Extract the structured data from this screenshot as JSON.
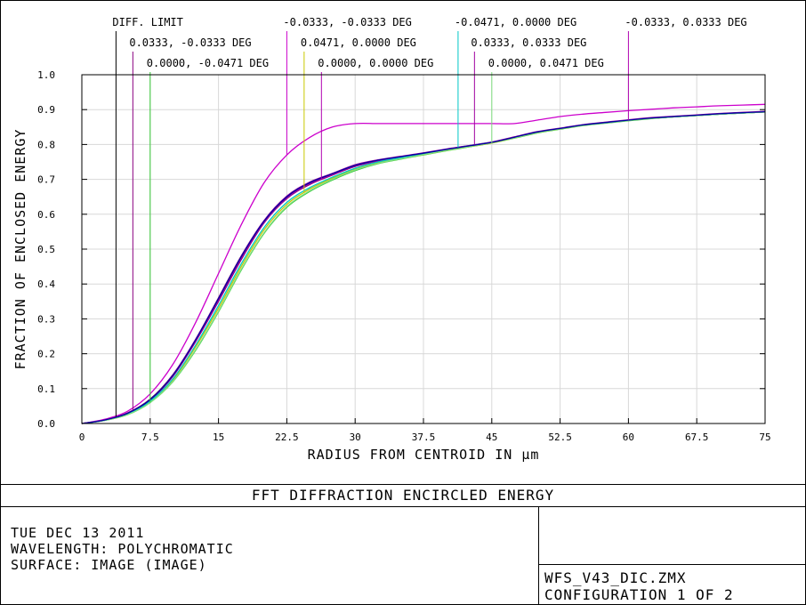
{
  "chart_data": {
    "type": "line",
    "xlabel": "RADIUS FROM CENTROID IN µm",
    "ylabel": "FRACTION OF ENCLOSED ENERGY",
    "xlim": [
      0,
      75
    ],
    "ylim": [
      0,
      1.0
    ],
    "x_ticks": [
      "0",
      "7.5",
      "15",
      "22.5",
      "30",
      "37.5",
      "45",
      "52.5",
      "60",
      "67.5",
      "75"
    ],
    "y_ticks": [
      "0.0",
      "0.1",
      "0.2",
      "0.3",
      "0.4",
      "0.5",
      "0.6",
      "0.7",
      "0.8",
      "0.9",
      "1.0"
    ],
    "grid": true,
    "labels": [
      {
        "text": "DIFF. LIMIT",
        "x": 3.75,
        "color": "#000000"
      },
      {
        "text": "0.0333, -0.0333 DEG",
        "x": 5.6,
        "color": "#8b0080"
      },
      {
        "text": "0.0000, -0.0471 DEG",
        "x": 7.5,
        "color": "#34c834"
      },
      {
        "text": "-0.0333, -0.0333 DEG",
        "x": 22.5,
        "color": "#cc00cc"
      },
      {
        "text": "0.0471, 0.0000 DEG",
        "x": 24.4,
        "color": "#c8c800"
      },
      {
        "text": "0.0000, 0.0000 DEG",
        "x": 26.3,
        "color": "#b000b0"
      },
      {
        "text": "-0.0471, 0.0000 DEG",
        "x": 41.3,
        "color": "#00c8c8"
      },
      {
        "text": "0.0333, 0.0333 DEG",
        "x": 43.1,
        "color": "#a000a0"
      },
      {
        "text": "0.0000, 0.0471 DEG",
        "x": 45.0,
        "color": "#80e080"
      },
      {
        "text": "-0.0333, 0.0333 DEG",
        "x": 60.0,
        "color": "#b000b0"
      }
    ],
    "series": [
      {
        "name": "DIFF. LIMIT",
        "color": "#000000",
        "x": [
          0,
          2.5,
          5,
          7.5,
          10,
          12.5,
          15,
          17.5,
          20,
          22.5,
          25,
          27.5,
          30,
          32.5,
          35,
          37.5,
          40,
          42.5,
          45,
          47.5,
          50,
          52.5,
          55,
          57.5,
          60,
          62.5,
          65,
          67.5,
          70,
          72.5,
          75
        ],
        "y": [
          0,
          0.01,
          0.03,
          0.07,
          0.14,
          0.24,
          0.36,
          0.48,
          0.58,
          0.65,
          0.69,
          0.715,
          0.74,
          0.755,
          0.765,
          0.775,
          0.785,
          0.795,
          0.805,
          0.82,
          0.835,
          0.845,
          0.855,
          0.862,
          0.869,
          0.875,
          0.879,
          0.883,
          0.887,
          0.89,
          0.893
        ]
      },
      {
        "name": "0.0333, -0.0333 DEG",
        "color": "#8b0080",
        "x": [
          0,
          2.5,
          5,
          7.5,
          10,
          12.5,
          15,
          17.5,
          20,
          22.5,
          25,
          27.5,
          30,
          32.5,
          35,
          37.5,
          40,
          42.5,
          45,
          47.5,
          50,
          52.5,
          55,
          57.5,
          60,
          62.5,
          65,
          67.5,
          70,
          72.5,
          75
        ],
        "y": [
          0,
          0.01,
          0.028,
          0.067,
          0.135,
          0.235,
          0.35,
          0.47,
          0.575,
          0.645,
          0.685,
          0.712,
          0.737,
          0.752,
          0.763,
          0.773,
          0.784,
          0.794,
          0.805,
          0.82,
          0.835,
          0.846,
          0.856,
          0.863,
          0.87,
          0.876,
          0.88,
          0.884,
          0.888,
          0.891,
          0.894
        ]
      },
      {
        "name": "0.0000, -0.0471 DEG",
        "color": "#34c834",
        "x": [
          0,
          2.5,
          5,
          7.5,
          10,
          12.5,
          15,
          17.5,
          20,
          22.5,
          25,
          27.5,
          30,
          32.5,
          35,
          37.5,
          40,
          42.5,
          45,
          47.5,
          50,
          52.5,
          55,
          57.5,
          60,
          62.5,
          65,
          67.5,
          70,
          72.5,
          75
        ],
        "y": [
          0,
          0.009,
          0.025,
          0.06,
          0.12,
          0.21,
          0.32,
          0.44,
          0.545,
          0.62,
          0.665,
          0.698,
          0.725,
          0.745,
          0.758,
          0.77,
          0.782,
          0.793,
          0.804,
          0.818,
          0.833,
          0.844,
          0.854,
          0.861,
          0.868,
          0.874,
          0.879,
          0.883,
          0.887,
          0.89,
          0.893
        ]
      },
      {
        "name": "-0.0333, -0.0333 DEG",
        "color": "#cc00cc",
        "x": [
          0,
          2.5,
          5,
          7.5,
          10,
          12.5,
          15,
          17.5,
          20,
          22.5,
          25,
          27.5,
          30,
          32.5,
          35,
          37.5,
          40,
          42.5,
          45,
          47.5,
          50,
          52.5,
          55,
          57.5,
          60,
          62.5,
          65,
          67.5,
          70,
          72.5,
          75
        ],
        "y": [
          0,
          0.012,
          0.035,
          0.085,
          0.17,
          0.29,
          0.43,
          0.57,
          0.69,
          0.77,
          0.82,
          0.85,
          0.86,
          0.86,
          0.86,
          0.86,
          0.86,
          0.86,
          0.86,
          0.86,
          0.87,
          0.88,
          0.887,
          0.892,
          0.897,
          0.901,
          0.905,
          0.908,
          0.911,
          0.913,
          0.915
        ]
      },
      {
        "name": "0.0471, 0.0000 DEG",
        "color": "#c8c800",
        "x": [
          0,
          2.5,
          5,
          7.5,
          10,
          12.5,
          15,
          17.5,
          20,
          22.5,
          25,
          27.5,
          30,
          32.5,
          35,
          37.5,
          40,
          42.5,
          45,
          47.5,
          50,
          52.5,
          55,
          57.5,
          60,
          62.5,
          65,
          67.5,
          70,
          72.5,
          75
        ],
        "y": [
          0,
          0.009,
          0.026,
          0.062,
          0.125,
          0.22,
          0.33,
          0.45,
          0.555,
          0.628,
          0.672,
          0.703,
          0.73,
          0.748,
          0.76,
          0.771,
          0.783,
          0.794,
          0.804,
          0.819,
          0.834,
          0.845,
          0.855,
          0.862,
          0.869,
          0.875,
          0.879,
          0.883,
          0.887,
          0.89,
          0.893
        ]
      },
      {
        "name": "0.0000, 0.0000 DEG",
        "color": "#b000b0",
        "x": [
          0,
          2.5,
          5,
          7.5,
          10,
          12.5,
          15,
          17.5,
          20,
          22.5,
          25,
          27.5,
          30,
          32.5,
          35,
          37.5,
          40,
          42.5,
          45,
          47.5,
          50,
          52.5,
          55,
          57.5,
          60,
          62.5,
          65,
          67.5,
          70,
          72.5,
          75
        ],
        "y": [
          0,
          0.01,
          0.029,
          0.068,
          0.137,
          0.238,
          0.355,
          0.475,
          0.578,
          0.648,
          0.688,
          0.714,
          0.739,
          0.754,
          0.764,
          0.774,
          0.785,
          0.795,
          0.806,
          0.821,
          0.836,
          0.846,
          0.856,
          0.863,
          0.87,
          0.876,
          0.88,
          0.884,
          0.888,
          0.891,
          0.894
        ]
      },
      {
        "name": "-0.0471, 0.0000 DEG",
        "color": "#00c8c8",
        "x": [
          0,
          2.5,
          5,
          7.5,
          10,
          12.5,
          15,
          17.5,
          20,
          22.5,
          25,
          27.5,
          30,
          32.5,
          35,
          37.5,
          40,
          42.5,
          45,
          47.5,
          50,
          52.5,
          55,
          57.5,
          60,
          62.5,
          65,
          67.5,
          70,
          72.5,
          75
        ],
        "y": [
          0,
          0.009,
          0.027,
          0.064,
          0.128,
          0.225,
          0.338,
          0.458,
          0.562,
          0.634,
          0.676,
          0.706,
          0.732,
          0.75,
          0.762,
          0.773,
          0.786,
          0.797,
          0.807,
          0.821,
          0.835,
          0.846,
          0.855,
          0.862,
          0.869,
          0.875,
          0.879,
          0.883,
          0.887,
          0.89,
          0.893
        ]
      },
      {
        "name": "0.0333, 0.0333 DEG",
        "color": "#a000a0",
        "x": [
          0,
          2.5,
          5,
          7.5,
          10,
          12.5,
          15,
          17.5,
          20,
          22.5,
          25,
          27.5,
          30,
          32.5,
          35,
          37.5,
          40,
          42.5,
          45,
          47.5,
          50,
          52.5,
          55,
          57.5,
          60,
          62.5,
          65,
          67.5,
          70,
          72.5,
          75
        ],
        "y": [
          0,
          0.01,
          0.03,
          0.069,
          0.14,
          0.242,
          0.36,
          0.48,
          0.582,
          0.652,
          0.692,
          0.717,
          0.742,
          0.756,
          0.766,
          0.776,
          0.787,
          0.797,
          0.807,
          0.822,
          0.837,
          0.847,
          0.857,
          0.864,
          0.871,
          0.877,
          0.881,
          0.885,
          0.889,
          0.892,
          0.895
        ]
      },
      {
        "name": "0.0000, 0.0471 DEG",
        "color": "#80e080",
        "x": [
          0,
          2.5,
          5,
          7.5,
          10,
          12.5,
          15,
          17.5,
          20,
          22.5,
          25,
          27.5,
          30,
          32.5,
          35,
          37.5,
          40,
          42.5,
          45,
          47.5,
          50,
          52.5,
          55,
          57.5,
          60,
          62.5,
          65,
          67.5,
          70,
          72.5,
          75
        ],
        "y": [
          0,
          0.009,
          0.025,
          0.06,
          0.121,
          0.212,
          0.322,
          0.442,
          0.547,
          0.622,
          0.667,
          0.7,
          0.727,
          0.746,
          0.759,
          0.771,
          0.783,
          0.794,
          0.805,
          0.819,
          0.834,
          0.845,
          0.855,
          0.862,
          0.869,
          0.875,
          0.879,
          0.883,
          0.887,
          0.89,
          0.893
        ]
      },
      {
        "name": "-0.0333, 0.0333 DEG",
        "color": "#0000a0",
        "x": [
          0,
          2.5,
          5,
          7.5,
          10,
          12.5,
          15,
          17.5,
          20,
          22.5,
          25,
          27.5,
          30,
          32.5,
          35,
          37.5,
          40,
          42.5,
          45,
          47.5,
          50,
          52.5,
          55,
          57.5,
          60,
          62.5,
          65,
          67.5,
          70,
          72.5,
          75
        ],
        "y": [
          0,
          0.01,
          0.029,
          0.068,
          0.138,
          0.24,
          0.358,
          0.478,
          0.58,
          0.65,
          0.69,
          0.716,
          0.74,
          0.755,
          0.765,
          0.775,
          0.786,
          0.796,
          0.806,
          0.821,
          0.836,
          0.846,
          0.856,
          0.863,
          0.87,
          0.876,
          0.88,
          0.884,
          0.888,
          0.891,
          0.894
        ]
      }
    ]
  },
  "footer": {
    "title": "FFT DIFFRACTION ENCIRCLED ENERGY",
    "date": "TUE DEC 13 2011",
    "wavelength": "WAVELENGTH: POLYCHROMATIC",
    "surface": "SURFACE: IMAGE (IMAGE)",
    "filename": "WFS_V43_DIC.ZMX",
    "configuration": "CONFIGURATION 1 OF 2"
  }
}
